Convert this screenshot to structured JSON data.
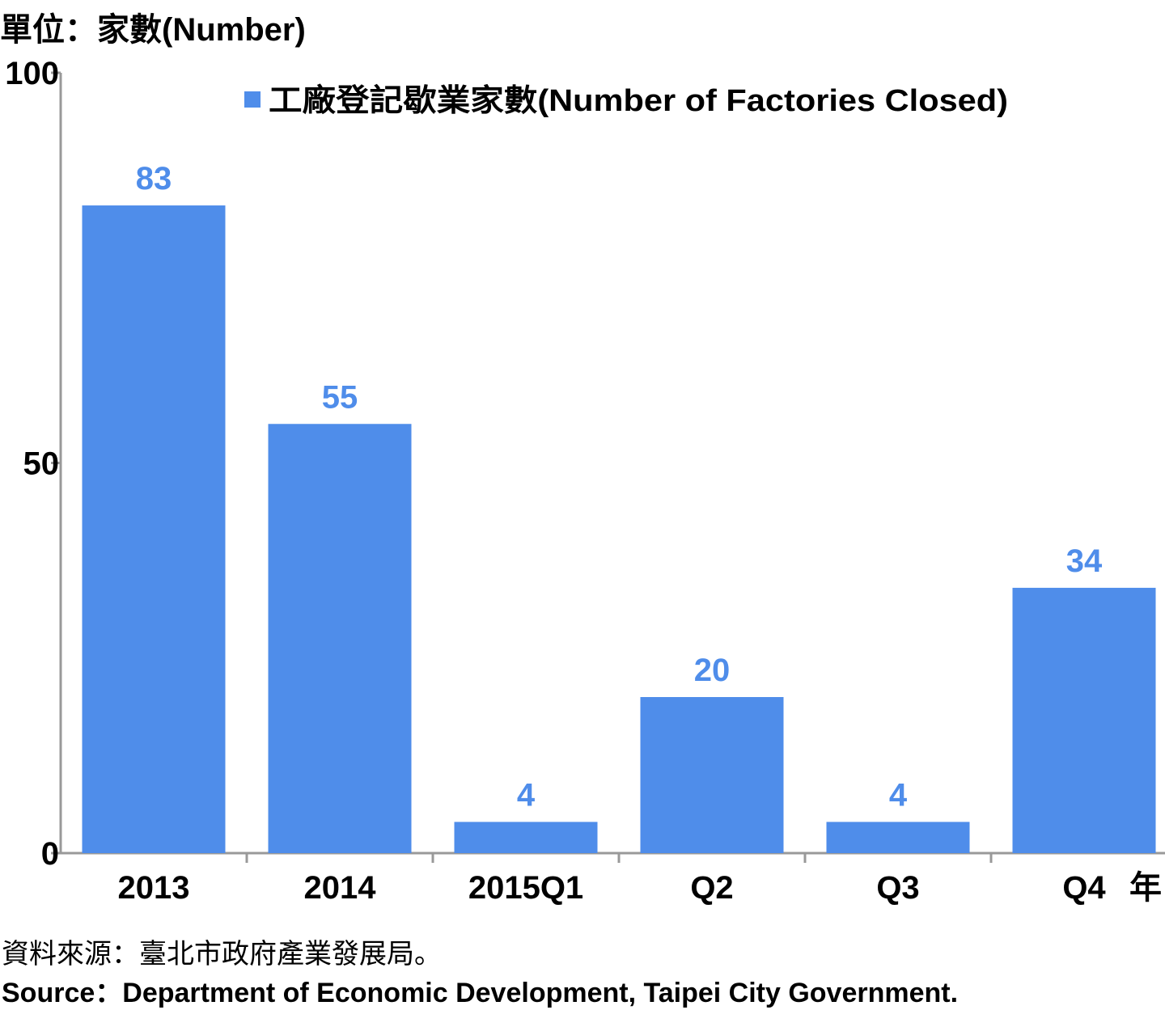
{
  "unit_label": "單位：家數(Number)",
  "x_unit_label": "年",
  "source_zh": "資料來源：臺北市政府產業發展局。",
  "source_en": "Source：Department of Economic Development, Taipei City Government.",
  "colors": {
    "bar": "#4f8dea",
    "data_label": "#4f8dea",
    "axis": "#999999",
    "text": "#000000"
  },
  "chart_data": {
    "type": "bar",
    "categories": [
      "2013",
      "2014",
      "2015Q1",
      "Q2",
      "Q3",
      "Q4"
    ],
    "series": [
      {
        "name": "工廠登記歇業家數(Number of Factories Closed)",
        "values": [
          83,
          55,
          4,
          20,
          4,
          34
        ]
      }
    ],
    "yticks": [
      0,
      50,
      100
    ],
    "ylim": [
      0,
      100
    ],
    "xlabel": "年",
    "ylabel": "單位：家數(Number)",
    "legend_position": "top",
    "data_labels": true,
    "grid": false
  }
}
